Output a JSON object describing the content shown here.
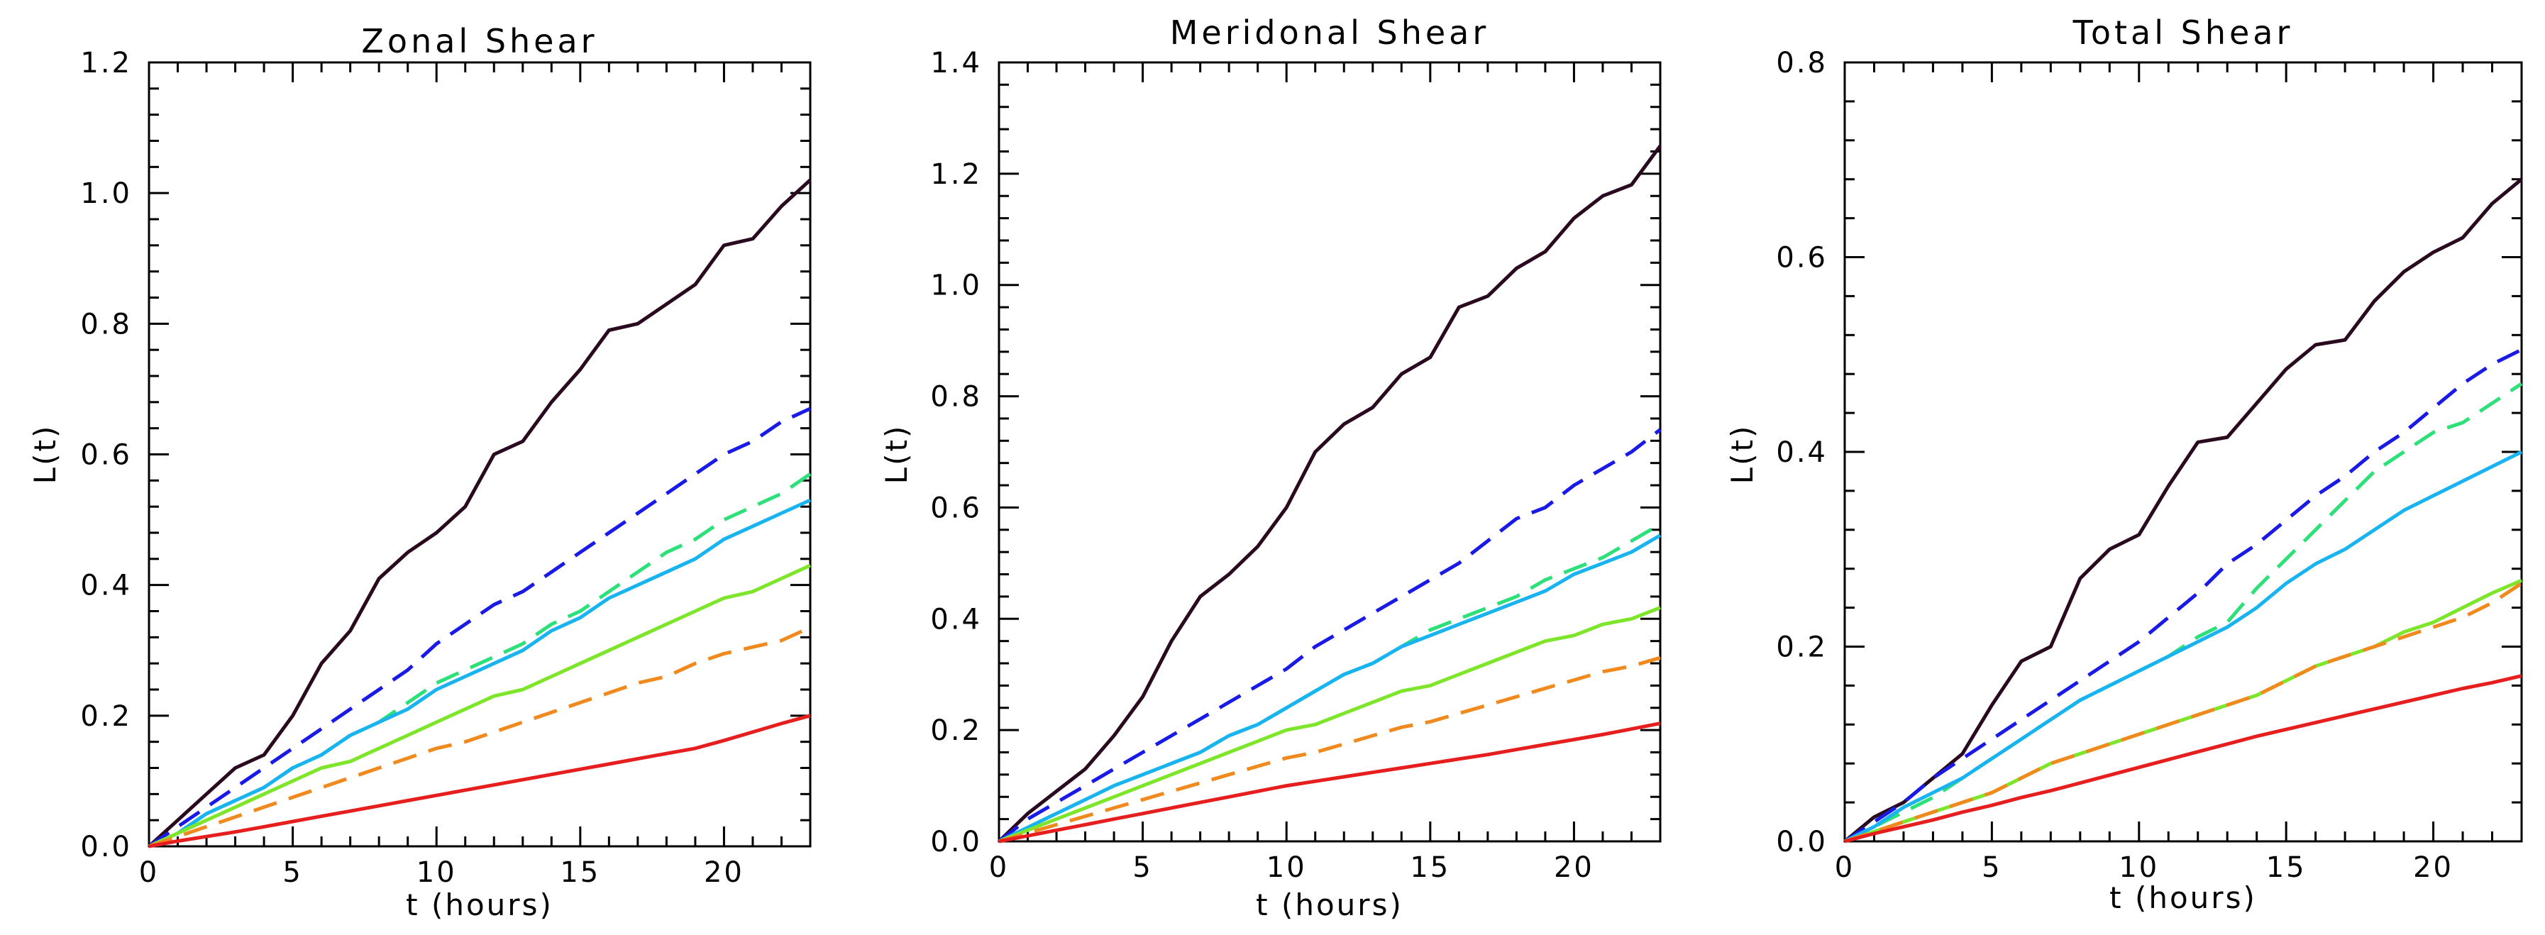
{
  "chart_data": [
    {
      "type": "line",
      "title": "Zonal Shear",
      "xlabel": "t (hours)",
      "ylabel": "L(t)",
      "xlim": [
        0,
        23
      ],
      "ylim": [
        0,
        1.2
      ],
      "xticks": [
        "0",
        "5",
        "10",
        "15",
        "20"
      ],
      "yticks": [
        "0.0",
        "0.2",
        "0.4",
        "0.6",
        "0.8",
        "1.0",
        "1.2"
      ],
      "x": [
        0,
        1,
        2,
        3,
        4,
        5,
        6,
        7,
        8,
        9,
        10,
        11,
        12,
        13,
        14,
        15,
        16,
        17,
        18,
        19,
        20,
        21,
        22,
        23
      ],
      "series": [
        {
          "color": "#2a0a1e",
          "dash": false,
          "values": [
            0,
            0.04,
            0.08,
            0.12,
            0.14,
            0.2,
            0.28,
            0.33,
            0.41,
            0.45,
            0.48,
            0.52,
            0.6,
            0.62,
            0.68,
            0.73,
            0.79,
            0.8,
            0.83,
            0.86,
            0.92,
            0.93,
            0.98,
            1.02
          ]
        },
        {
          "color": "#1a1ae6",
          "dash": true,
          "values": [
            0,
            0.03,
            0.06,
            0.09,
            0.12,
            0.15,
            0.18,
            0.21,
            0.24,
            0.27,
            0.31,
            0.34,
            0.37,
            0.39,
            0.42,
            0.45,
            0.48,
            0.51,
            0.54,
            0.57,
            0.6,
            0.62,
            0.65,
            0.67
          ]
        },
        {
          "color": "#2ee07a",
          "dash": true,
          "values": [
            0,
            0.02,
            0.05,
            0.07,
            0.09,
            0.12,
            0.14,
            0.17,
            0.19,
            0.22,
            0.25,
            0.27,
            0.29,
            0.31,
            0.34,
            0.36,
            0.39,
            0.42,
            0.45,
            0.47,
            0.5,
            0.52,
            0.54,
            0.57
          ]
        },
        {
          "color": "#19b4f0",
          "dash": false,
          "values": [
            0,
            0.02,
            0.05,
            0.07,
            0.09,
            0.12,
            0.14,
            0.17,
            0.19,
            0.21,
            0.24,
            0.26,
            0.28,
            0.3,
            0.33,
            0.35,
            0.38,
            0.4,
            0.42,
            0.44,
            0.47,
            0.49,
            0.51,
            0.53
          ]
        },
        {
          "color": "#7ee62a",
          "dash": false,
          "values": [
            0,
            0.02,
            0.04,
            0.06,
            0.08,
            0.1,
            0.12,
            0.13,
            0.15,
            0.17,
            0.19,
            0.21,
            0.23,
            0.24,
            0.26,
            0.28,
            0.3,
            0.32,
            0.34,
            0.36,
            0.38,
            0.39,
            0.41,
            0.43
          ]
        },
        {
          "color": "#f08a1e",
          "dash": true,
          "values": [
            0,
            0.015,
            0.03,
            0.045,
            0.06,
            0.075,
            0.09,
            0.105,
            0.12,
            0.135,
            0.15,
            0.16,
            0.175,
            0.19,
            0.205,
            0.22,
            0.235,
            0.25,
            0.26,
            0.28,
            0.295,
            0.305,
            0.315,
            0.335
          ]
        },
        {
          "color": "#e61e1e",
          "dash": false,
          "values": [
            0,
            0.008,
            0.015,
            0.022,
            0.03,
            0.038,
            0.046,
            0.054,
            0.062,
            0.07,
            0.078,
            0.086,
            0.094,
            0.102,
            0.11,
            0.118,
            0.126,
            0.134,
            0.142,
            0.15,
            0.162,
            0.175,
            0.188,
            0.2
          ]
        }
      ]
    },
    {
      "type": "line",
      "title": "Meridonal Shear",
      "xlabel": "t (hours)",
      "ylabel": "L(t)",
      "xlim": [
        0,
        23
      ],
      "ylim": [
        0,
        1.4
      ],
      "xticks": [
        "0",
        "5",
        "10",
        "15",
        "20"
      ],
      "yticks": [
        "0.0",
        "0.2",
        "0.4",
        "0.6",
        "0.8",
        "1.0",
        "1.2",
        "1.4"
      ],
      "x": [
        0,
        1,
        2,
        3,
        4,
        5,
        6,
        7,
        8,
        9,
        10,
        11,
        12,
        13,
        14,
        15,
        16,
        17,
        18,
        19,
        20,
        21,
        22,
        23
      ],
      "series": [
        {
          "color": "#2a0a1e",
          "dash": false,
          "values": [
            0,
            0.05,
            0.09,
            0.13,
            0.19,
            0.26,
            0.36,
            0.44,
            0.48,
            0.53,
            0.6,
            0.7,
            0.75,
            0.78,
            0.84,
            0.87,
            0.96,
            0.98,
            1.03,
            1.06,
            1.12,
            1.16,
            1.18,
            1.25
          ]
        },
        {
          "color": "#1a1ae6",
          "dash": true,
          "values": [
            0,
            0.04,
            0.07,
            0.1,
            0.13,
            0.16,
            0.19,
            0.22,
            0.25,
            0.28,
            0.31,
            0.35,
            0.38,
            0.41,
            0.44,
            0.47,
            0.5,
            0.54,
            0.58,
            0.6,
            0.64,
            0.67,
            0.7,
            0.74
          ]
        },
        {
          "color": "#2ee07a",
          "dash": true,
          "values": [
            0,
            0.025,
            0.05,
            0.075,
            0.1,
            0.12,
            0.14,
            0.16,
            0.19,
            0.21,
            0.24,
            0.27,
            0.3,
            0.32,
            0.35,
            0.38,
            0.4,
            0.42,
            0.44,
            0.47,
            0.49,
            0.51,
            0.54,
            0.57
          ]
        },
        {
          "color": "#19b4f0",
          "dash": false,
          "values": [
            0,
            0.025,
            0.05,
            0.075,
            0.1,
            0.12,
            0.14,
            0.16,
            0.19,
            0.21,
            0.24,
            0.27,
            0.3,
            0.32,
            0.35,
            0.37,
            0.39,
            0.41,
            0.43,
            0.45,
            0.48,
            0.5,
            0.52,
            0.55
          ]
        },
        {
          "color": "#7ee62a",
          "dash": false,
          "values": [
            0,
            0.02,
            0.04,
            0.06,
            0.08,
            0.1,
            0.12,
            0.14,
            0.16,
            0.18,
            0.2,
            0.21,
            0.23,
            0.25,
            0.27,
            0.28,
            0.3,
            0.32,
            0.34,
            0.36,
            0.37,
            0.39,
            0.4,
            0.42
          ]
        },
        {
          "color": "#f08a1e",
          "dash": true,
          "values": [
            0,
            0.015,
            0.03,
            0.045,
            0.06,
            0.075,
            0.09,
            0.105,
            0.12,
            0.135,
            0.15,
            0.16,
            0.175,
            0.19,
            0.205,
            0.215,
            0.23,
            0.245,
            0.26,
            0.275,
            0.29,
            0.305,
            0.315,
            0.33
          ]
        },
        {
          "color": "#e61e1e",
          "dash": false,
          "values": [
            0,
            0.01,
            0.02,
            0.03,
            0.04,
            0.05,
            0.06,
            0.07,
            0.08,
            0.09,
            0.1,
            0.108,
            0.116,
            0.124,
            0.132,
            0.14,
            0.148,
            0.156,
            0.165,
            0.174,
            0.183,
            0.192,
            0.202,
            0.212
          ]
        }
      ]
    },
    {
      "type": "line",
      "title": "Total Shear",
      "xlabel": "t (hours)",
      "ylabel": "L(t)",
      "xlim": [
        0,
        23
      ],
      "ylim": [
        0,
        0.8
      ],
      "xticks": [
        "0",
        "5",
        "10",
        "15",
        "20"
      ],
      "yticks": [
        "0.0",
        "0.2",
        "0.4",
        "0.6",
        "0.8"
      ],
      "x": [
        0,
        1,
        2,
        3,
        4,
        5,
        6,
        7,
        8,
        9,
        10,
        11,
        12,
        13,
        14,
        15,
        16,
        17,
        18,
        19,
        20,
        21,
        22,
        23
      ],
      "series": [
        {
          "color": "#2a0a1e",
          "dash": false,
          "values": [
            0,
            0.025,
            0.04,
            0.065,
            0.09,
            0.14,
            0.185,
            0.2,
            0.27,
            0.3,
            0.315,
            0.365,
            0.41,
            0.415,
            0.45,
            0.485,
            0.51,
            0.515,
            0.555,
            0.585,
            0.605,
            0.62,
            0.655,
            0.68
          ]
        },
        {
          "color": "#1a1ae6",
          "dash": true,
          "values": [
            0,
            0.02,
            0.04,
            0.065,
            0.085,
            0.105,
            0.125,
            0.145,
            0.165,
            0.185,
            0.205,
            0.23,
            0.255,
            0.285,
            0.305,
            0.33,
            0.355,
            0.375,
            0.4,
            0.42,
            0.445,
            0.47,
            0.49,
            0.505
          ]
        },
        {
          "color": "#2ee07a",
          "dash": true,
          "values": [
            0,
            0.015,
            0.03,
            0.045,
            0.065,
            0.085,
            0.105,
            0.125,
            0.145,
            0.16,
            0.175,
            0.19,
            0.21,
            0.225,
            0.26,
            0.29,
            0.32,
            0.35,
            0.38,
            0.4,
            0.42,
            0.43,
            0.45,
            0.47
          ]
        },
        {
          "color": "#19b4f0",
          "dash": false,
          "values": [
            0,
            0.015,
            0.035,
            0.05,
            0.065,
            0.085,
            0.105,
            0.125,
            0.145,
            0.16,
            0.175,
            0.19,
            0.205,
            0.22,
            0.24,
            0.265,
            0.285,
            0.3,
            0.32,
            0.34,
            0.355,
            0.37,
            0.385,
            0.4
          ]
        },
        {
          "color": "#7ee62a",
          "dash": false,
          "values": [
            0,
            0.01,
            0.02,
            0.03,
            0.04,
            0.05,
            0.065,
            0.08,
            0.09,
            0.1,
            0.11,
            0.12,
            0.13,
            0.14,
            0.15,
            0.165,
            0.18,
            0.19,
            0.2,
            0.215,
            0.225,
            0.24,
            0.255,
            0.268
          ]
        },
        {
          "color": "#f08a1e",
          "dash": true,
          "values": [
            0,
            0.01,
            0.02,
            0.03,
            0.04,
            0.05,
            0.065,
            0.08,
            0.09,
            0.1,
            0.11,
            0.12,
            0.13,
            0.14,
            0.15,
            0.165,
            0.18,
            0.19,
            0.2,
            0.21,
            0.22,
            0.23,
            0.245,
            0.265
          ]
        },
        {
          "color": "#e61e1e",
          "dash": false,
          "values": [
            0,
            0.008,
            0.015,
            0.022,
            0.03,
            0.037,
            0.045,
            0.052,
            0.06,
            0.068,
            0.076,
            0.084,
            0.092,
            0.1,
            0.108,
            0.115,
            0.122,
            0.129,
            0.136,
            0.143,
            0.15,
            0.157,
            0.163,
            0.17
          ]
        }
      ]
    }
  ]
}
